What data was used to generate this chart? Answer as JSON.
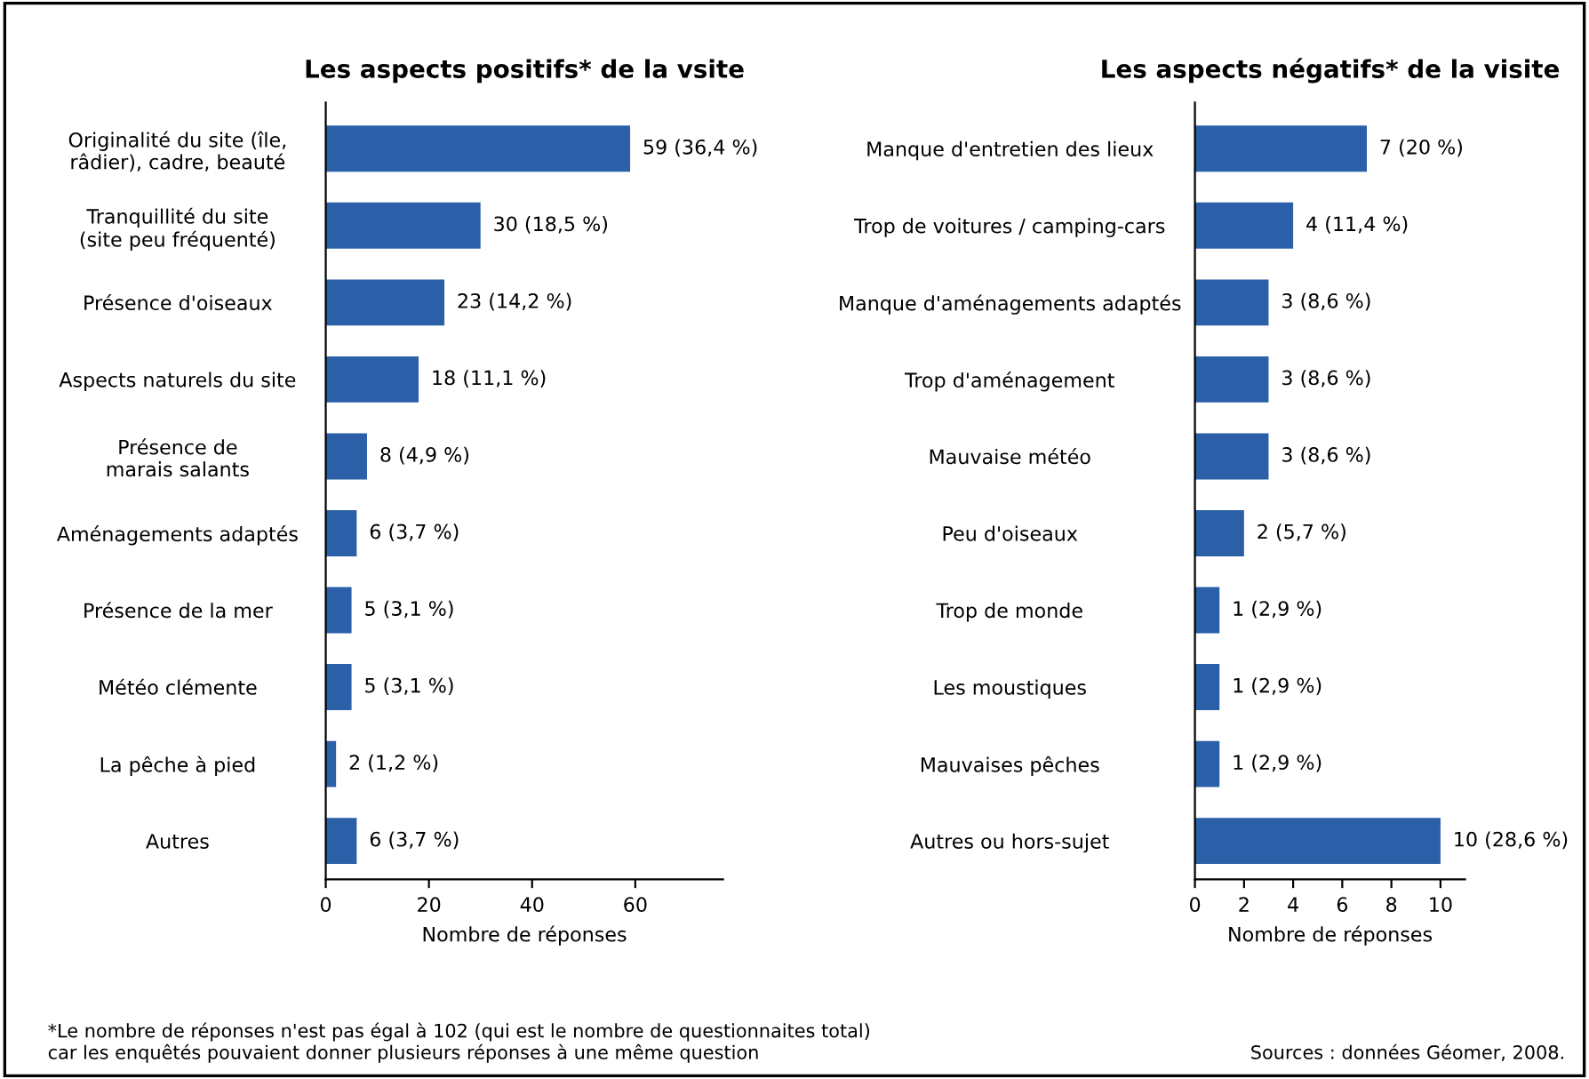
{
  "chart_data": [
    {
      "type": "bar",
      "orientation": "horizontal",
      "title": "Les aspects positifs* de la vsite",
      "xlabel": "Nombre de réponses",
      "color": "#2b5fa8",
      "categories": [
        "Originalité du site (île,\nrâdier), cadre, beauté",
        "Tranquillité du site\n(site peu fréquenté)",
        "Présence d'oiseaux",
        "Aspects naturels du site",
        "Présence de\nmarais salants",
        "Aménagements adaptés",
        "Présence de la mer",
        "Météo clémente",
        "La pêche à pied",
        "Autres"
      ],
      "values": [
        59,
        30,
        23,
        18,
        8,
        6,
        5,
        5,
        2,
        6
      ],
      "value_labels": [
        "59 (36,4 %)",
        "30 (18,5 %)",
        "23 (14,2 %)",
        "18 (11,1 %)",
        "8 (4,9 %)",
        "6 (3,7 %)",
        "5 (3,1 %)",
        "5 (3,1 %)",
        "2 (1,2 %)",
        "6 (3,7 %)"
      ],
      "xlim": [
        0,
        77
      ],
      "xticks": [
        0,
        20,
        40,
        60
      ],
      "grid": false,
      "legend": false,
      "annotations": [
        "*Le nombre de réponses n'est pas égal à 102 (qui est le nombre de questionnaites total)\ncar les enquêtés pouvaient donner plusieurs réponses à une même question"
      ]
    },
    {
      "type": "bar",
      "orientation": "horizontal",
      "title": "Les aspects négatifs* de la visite",
      "xlabel": "Nombre de réponses",
      "color": "#2b5fa8",
      "categories": [
        "Manque d'entretien des lieux",
        "Trop de voitures / camping-cars",
        "Manque d'aménagements adaptés",
        "Trop d'aménagement",
        "Mauvaise météo",
        "Peu d'oiseaux",
        "Trop de monde",
        "Les moustiques",
        "Mauvaises pêches",
        "Autres ou hors-sujet"
      ],
      "values": [
        7,
        4,
        3,
        3,
        3,
        2,
        1,
        1,
        1,
        10
      ],
      "value_labels": [
        "7 (20 %)",
        "4 (11,4 %)",
        "3 (8,6 %)",
        "3 (8,6 %)",
        "3 (8,6 %)",
        "2 (5,7 %)",
        "1 (2,9 %)",
        "1 (2,9 %)",
        "1 (2,9 %)",
        "10 (28,6 %)"
      ],
      "xlim": [
        0,
        11
      ],
      "xticks": [
        0,
        2,
        4,
        6,
        8,
        10
      ],
      "grid": false,
      "legend": false,
      "annotations": [
        "Sources : données Géomer, 2008."
      ]
    }
  ]
}
